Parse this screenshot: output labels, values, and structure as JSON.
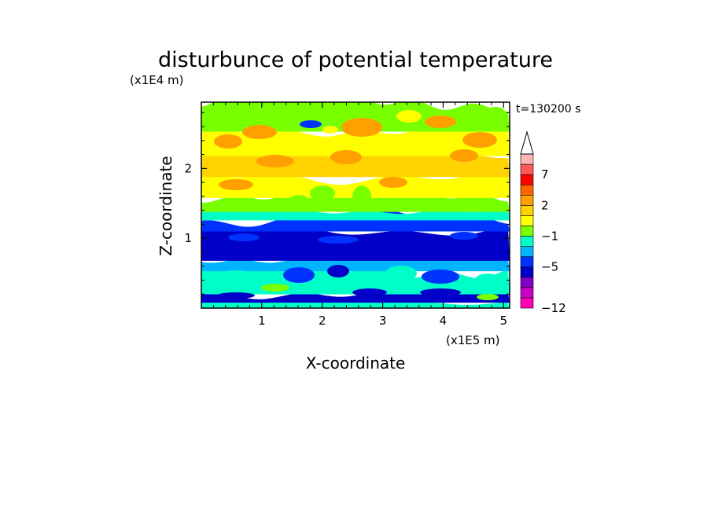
{
  "chart_data": {
    "type": "heatmap",
    "title": "disturbunce of potential temperature",
    "xlabel": "X-coordinate",
    "ylabel": "Z-coordinate",
    "x_unit": "(x1E5 m)",
    "y_unit": "(x1E4 m)",
    "time_label": "t=130200 s",
    "xlim": [
      0,
      5.1
    ],
    "ylim": [
      0,
      2.95
    ],
    "x_ticks": [
      "1",
      "2",
      "3",
      "4",
      "5"
    ],
    "x_tick_values": [
      1,
      2,
      3,
      4,
      5
    ],
    "y_ticks": [
      "1",
      "2"
    ],
    "y_tick_values": [
      1,
      2
    ],
    "colorbar": {
      "labels": [
        {
          "text": "7",
          "level": 7
        },
        {
          "text": "2",
          "level": 2
        },
        {
          "text": "−1",
          "level": -1
        },
        {
          "text": "−5",
          "level": -5
        },
        {
          "text": "−12",
          "level": -12
        }
      ],
      "colors": [
        "#ff00b4",
        "#c800c8",
        "#8200c8",
        "#0000c8",
        "#0032ff",
        "#00b4ff",
        "#00ffc8",
        "#78ff00",
        "#ffff00",
        "#ffd200",
        "#ffa000",
        "#ff6400",
        "#ff0000",
        "#ff5a5a",
        "#ffb4b4"
      ],
      "extend": "max"
    },
    "field_rows": [
      {
        "z_min": 0.0,
        "z_max": 0.1,
        "level": -1
      },
      {
        "z_min": 0.1,
        "z_max": 0.22,
        "level": -5
      },
      {
        "z_min": 0.22,
        "z_max": 0.55,
        "level": -1
      },
      {
        "z_min": 0.55,
        "z_max": 0.7,
        "level": -2
      },
      {
        "z_min": 0.7,
        "z_max": 1.12,
        "level": -5
      },
      {
        "z_min": 1.12,
        "z_max": 1.28,
        "level": -3
      },
      {
        "z_min": 1.28,
        "z_max": 1.4,
        "level": -1
      },
      {
        "z_min": 1.4,
        "z_max": 1.6,
        "level": 0
      },
      {
        "z_min": 1.6,
        "z_max": 1.9,
        "level": 1
      },
      {
        "z_min": 1.9,
        "z_max": 2.2,
        "level": 2
      },
      {
        "z_min": 2.2,
        "z_max": 2.55,
        "level": 1
      },
      {
        "z_min": 2.55,
        "z_max": 2.95,
        "level": 0
      }
    ]
  }
}
